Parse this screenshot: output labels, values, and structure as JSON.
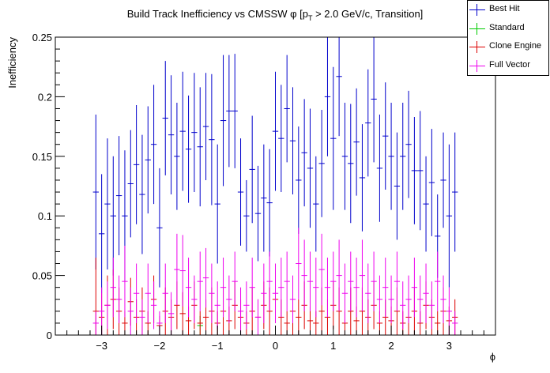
{
  "chart_data": {
    "type": "scatter",
    "title": "Build Track Inefficiency vs CMSSW φ [p",
    "title_sub": "T",
    "title_tail": " > 2.0 GeV/c, Transition]",
    "xlabel": "ϕ",
    "ylabel": "Inefficiency",
    "xlim": [
      -3.8,
      3.8
    ],
    "ylim": [
      0,
      0.25
    ],
    "xticks": [
      -3,
      -2,
      -1,
      0,
      1,
      2,
      3
    ],
    "xtick_labels": [
      "−3",
      "−2",
      "−1",
      "0",
      "1",
      "2",
      "3"
    ],
    "yticks": [
      0,
      0.05,
      0.1,
      0.15,
      0.2,
      0.25
    ],
    "ytick_labels": [
      "0",
      "0.05",
      "0.1",
      "0.15",
      "0.2",
      "0.25"
    ],
    "legend_position": "top-right",
    "series": [
      {
        "name": "Best Hit",
        "color": "#0000cc",
        "x": [
          -3.1,
          -3.0,
          -2.9,
          -2.8,
          -2.7,
          -2.6,
          -2.5,
          -2.4,
          -2.3,
          -2.2,
          -2.1,
          -2.0,
          -1.9,
          -1.8,
          -1.7,
          -1.6,
          -1.5,
          -1.4,
          -1.3,
          -1.2,
          -1.1,
          -1.0,
          -0.9,
          -0.8,
          -0.7,
          -0.6,
          -0.5,
          -0.4,
          -0.3,
          -0.2,
          -0.1,
          0.0,
          0.1,
          0.2,
          0.3,
          0.4,
          0.5,
          0.6,
          0.7,
          0.8,
          0.9,
          1.0,
          1.1,
          1.2,
          1.3,
          1.4,
          1.5,
          1.6,
          1.7,
          1.8,
          1.9,
          2.0,
          2.1,
          2.2,
          2.3,
          2.4,
          2.5,
          2.6,
          2.7,
          2.8,
          2.9,
          3.0,
          3.1
        ],
        "y": [
          0.12,
          0.085,
          0.11,
          0.1,
          0.117,
          0.1,
          0.127,
          0.143,
          0.118,
          0.147,
          0.16,
          0.09,
          0.182,
          0.168,
          0.15,
          0.171,
          0.156,
          0.17,
          0.158,
          0.175,
          0.164,
          0.11,
          0.18,
          0.188,
          0.188,
          0.12,
          0.1,
          0.139,
          0.102,
          0.115,
          0.111,
          0.171,
          0.165,
          0.19,
          0.163,
          0.13,
          0.153,
          0.14,
          0.11,
          0.144,
          0.2,
          0.165,
          0.217,
          0.15,
          0.144,
          0.162,
          0.132,
          0.178,
          0.198,
          0.14,
          0.167,
          0.15,
          0.125,
          0.15,
          0.16,
          0.138,
          0.138,
          0.11,
          0.128,
          0.083,
          0.13,
          0.1,
          0.12
        ],
        "err": [
          0.065,
          0.05,
          0.055,
          0.05,
          0.05,
          0.055,
          0.045,
          0.05,
          0.05,
          0.045,
          0.05,
          0.05,
          0.048,
          0.05,
          0.045,
          0.05,
          0.045,
          0.05,
          0.05,
          0.045,
          0.055,
          0.05,
          0.055,
          0.047,
          0.048,
          0.045,
          0.03,
          0.045,
          0.04,
          0.045,
          0.045,
          0.05,
          0.045,
          0.045,
          0.045,
          0.045,
          0.045,
          0.05,
          0.04,
          0.045,
          0.05,
          0.06,
          0.05,
          0.045,
          0.05,
          0.045,
          0.045,
          0.045,
          0.053,
          0.045,
          0.045,
          0.045,
          0.045,
          0.045,
          0.045,
          0.045,
          0.05,
          0.04,
          0.045,
          0.035,
          0.04,
          0.06,
          0.05
        ]
      },
      {
        "name": "Standard",
        "color": "#00cc00",
        "x": [
          -1.3
        ],
        "y": [
          0.008
        ],
        "err": [
          0.008
        ]
      },
      {
        "name": "Clone Engine",
        "color": "#dd0000",
        "x": [
          -3.1,
          -3.0,
          -2.9,
          -2.8,
          -2.7,
          -2.6,
          -2.5,
          -2.4,
          -2.3,
          -2.2,
          -2.1,
          -2.0,
          -1.9,
          -1.8,
          -1.7,
          -1.6,
          -1.5,
          -1.4,
          -1.3,
          -1.2,
          -1.1,
          -1.0,
          -0.9,
          -0.8,
          -0.7,
          -0.6,
          -0.5,
          -0.4,
          -0.3,
          -0.2,
          -0.1,
          0.0,
          0.1,
          0.2,
          0.3,
          0.4,
          0.5,
          0.6,
          0.7,
          0.8,
          0.9,
          1.0,
          1.1,
          1.2,
          1.3,
          1.4,
          1.5,
          1.6,
          1.7,
          1.8,
          1.9,
          2.0,
          2.1,
          2.2,
          2.3,
          2.4,
          2.5,
          2.6,
          2.7,
          2.8,
          2.9,
          3.0,
          3.1
        ],
        "y": [
          0.02,
          0.015,
          0.025,
          0.03,
          0.02,
          0.01,
          0.028,
          0.015,
          0.02,
          0.01,
          0.03,
          0.008,
          0.02,
          0.015,
          0.025,
          0.018,
          0.012,
          0.025,
          0.01,
          0.015,
          0.02,
          0.01,
          0.02,
          0.012,
          0.025,
          0.015,
          0.01,
          0.02,
          0.015,
          0.025,
          0.02,
          0.03,
          0.015,
          0.01,
          0.02,
          0.015,
          0.025,
          0.012,
          0.01,
          0.02,
          0.015,
          0.025,
          0.02,
          0.01,
          0.02,
          0.012,
          0.02,
          0.015,
          0.025,
          0.01,
          0.015,
          0.012,
          0.02,
          0.01,
          0.015,
          0.02,
          0.01,
          0.025,
          0.015,
          0.01,
          0.02,
          0.012,
          0.015
        ],
        "err": [
          0.045,
          0.02,
          0.025,
          0.025,
          0.02,
          0.01,
          0.02,
          0.015,
          0.02,
          0.01,
          0.02,
          0.008,
          0.02,
          0.015,
          0.02,
          0.018,
          0.012,
          0.02,
          0.01,
          0.015,
          0.02,
          0.01,
          0.02,
          0.012,
          0.02,
          0.015,
          0.01,
          0.02,
          0.015,
          0.02,
          0.02,
          0.02,
          0.015,
          0.01,
          0.02,
          0.015,
          0.02,
          0.012,
          0.01,
          0.02,
          0.015,
          0.02,
          0.02,
          0.01,
          0.02,
          0.012,
          0.02,
          0.015,
          0.02,
          0.01,
          0.015,
          0.012,
          0.02,
          0.01,
          0.015,
          0.02,
          0.01,
          0.02,
          0.015,
          0.01,
          0.02,
          0.012,
          0.015
        ]
      },
      {
        "name": "Full Vector",
        "color": "#ee00ee",
        "x": [
          -3.1,
          -3.0,
          -2.9,
          -2.8,
          -2.7,
          -2.6,
          -2.5,
          -2.4,
          -2.3,
          -2.2,
          -2.1,
          -2.0,
          -1.9,
          -1.8,
          -1.7,
          -1.6,
          -1.5,
          -1.4,
          -1.3,
          -1.2,
          -1.1,
          -1.0,
          -0.9,
          -0.8,
          -0.7,
          -0.6,
          -0.5,
          -0.4,
          -0.3,
          -0.2,
          -0.1,
          0.0,
          0.1,
          0.2,
          0.3,
          0.4,
          0.5,
          0.6,
          0.7,
          0.8,
          0.9,
          1.0,
          1.1,
          1.2,
          1.3,
          1.4,
          1.5,
          1.6,
          1.7,
          1.8,
          1.9,
          2.0,
          2.1,
          2.2,
          2.3,
          2.4,
          2.5,
          2.6,
          2.7,
          2.8,
          2.9,
          3.0,
          3.1
        ],
        "y": [
          0.01,
          0.02,
          0.025,
          0.04,
          0.03,
          0.045,
          0.02,
          0.035,
          0.015,
          0.035,
          0.025,
          0.01,
          0.035,
          0.018,
          0.055,
          0.054,
          0.04,
          0.03,
          0.045,
          0.048,
          0.035,
          0.025,
          0.04,
          0.03,
          0.045,
          0.02,
          0.025,
          0.04,
          0.015,
          0.035,
          0.045,
          0.035,
          0.04,
          0.045,
          0.03,
          0.06,
          0.05,
          0.045,
          0.04,
          0.055,
          0.04,
          0.045,
          0.05,
          0.035,
          0.045,
          0.04,
          0.05,
          0.035,
          0.045,
          0.03,
          0.04,
          0.03,
          0.045,
          0.025,
          0.03,
          0.04,
          0.03,
          0.035,
          0.025,
          0.045,
          0.03,
          0.02,
          0.01
        ],
        "err": [
          0.01,
          0.02,
          0.02,
          0.025,
          0.02,
          0.03,
          0.02,
          0.025,
          0.015,
          0.025,
          0.02,
          0.01,
          0.025,
          0.018,
          0.03,
          0.03,
          0.025,
          0.02,
          0.025,
          0.025,
          0.025,
          0.02,
          0.025,
          0.02,
          0.025,
          0.02,
          0.02,
          0.025,
          0.015,
          0.025,
          0.025,
          0.025,
          0.025,
          0.025,
          0.02,
          0.03,
          0.03,
          0.025,
          0.025,
          0.03,
          0.025,
          0.025,
          0.03,
          0.025,
          0.025,
          0.025,
          0.03,
          0.025,
          0.025,
          0.02,
          0.025,
          0.02,
          0.025,
          0.02,
          0.02,
          0.025,
          0.02,
          0.025,
          0.02,
          0.025,
          0.02,
          0.02,
          0.01
        ]
      }
    ]
  }
}
